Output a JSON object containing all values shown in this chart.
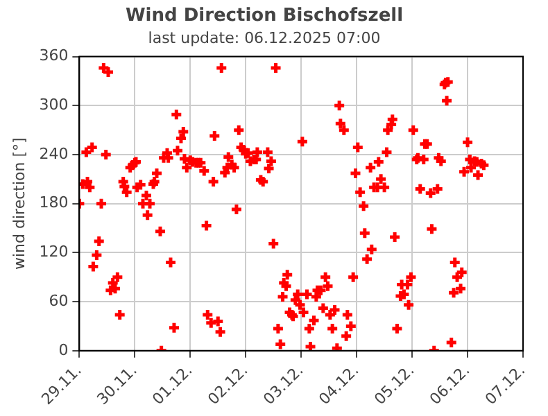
{
  "chart_data": {
    "type": "scatter",
    "title": "Wind Direction Bischofszell",
    "subtitle": "last update: 06.12.2025 07:00",
    "ylabel": "wind direction [°]",
    "xlim": [
      "2025-11-29",
      "2025-12-07"
    ],
    "xticks": [
      {
        "value": "2025-11-29",
        "label": "29.11."
      },
      {
        "value": "2025-11-30",
        "label": "30.11."
      },
      {
        "value": "2025-12-01",
        "label": "01.12."
      },
      {
        "value": "2025-12-02",
        "label": "02.12."
      },
      {
        "value": "2025-12-03",
        "label": "03.12."
      },
      {
        "value": "2025-12-04",
        "label": "04.12."
      },
      {
        "value": "2025-12-05",
        "label": "05.12."
      },
      {
        "value": "2025-12-06",
        "label": "06.12."
      },
      {
        "value": "2025-12-07",
        "label": "07.12."
      }
    ],
    "ylim": [
      0,
      360
    ],
    "yticks": [
      0,
      60,
      120,
      180,
      240,
      300,
      360
    ],
    "grid": true,
    "legend": false,
    "marker": "cross",
    "series": [
      {
        "color": "#ff0000",
        "x": [
          "2025-11-29T00:00",
          "2025-11-29T01:30",
          "2025-11-29T03:00",
          "2025-11-29T03:30",
          "2025-11-29T04:30",
          "2025-11-29T05:30",
          "2025-11-29T06:00",
          "2025-11-29T07:30",
          "2025-11-29T08:30",
          "2025-11-29T09:30",
          "2025-11-29T10:30",
          "2025-11-29T11:30",
          "2025-11-29T12:30",
          "2025-11-29T13:30",
          "2025-11-29T14:30",
          "2025-11-29T15:30",
          "2025-11-29T16:30",
          "2025-11-29T17:30",
          "2025-11-29T19:00",
          "2025-11-29T19:30",
          "2025-11-29T20:30",
          "2025-11-29T22:00",
          "2025-11-29T23:00",
          "2025-11-30T00:00",
          "2025-11-30T00:30",
          "2025-11-30T01:00",
          "2025-11-30T02:30",
          "2025-11-30T03:30",
          "2025-11-30T05:00",
          "2025-11-30T05:30",
          "2025-11-30T06:30",
          "2025-11-30T08:00",
          "2025-11-30T08:30",
          "2025-11-30T09:30",
          "2025-11-30T11:00",
          "2025-11-30T11:30",
          "2025-11-30T12:30",
          "2025-11-30T14:00",
          "2025-11-30T14:30",
          "2025-11-30T15:30",
          "2025-11-30T17:00",
          "2025-11-30T18:00",
          "2025-11-30T18:30",
          "2025-11-30T20:00",
          "2025-11-30T21:00",
          "2025-11-30T21:30",
          "2025-11-30T22:30",
          "2025-12-01T00:00",
          "2025-12-01T01:00",
          "2025-12-01T02:30",
          "2025-12-01T03:30",
          "2025-12-01T04:30",
          "2025-12-01T06:00",
          "2025-12-01T07:00",
          "2025-12-01T07:30",
          "2025-12-01T09:00",
          "2025-12-01T10:00",
          "2025-12-01T10:30",
          "2025-12-01T12:00",
          "2025-12-01T13:00",
          "2025-12-01T13:30",
          "2025-12-01T15:00",
          "2025-12-01T16:00",
          "2025-12-01T16:30",
          "2025-12-01T18:00",
          "2025-12-01T19:00",
          "2025-12-01T20:00",
          "2025-12-01T21:00",
          "2025-12-01T22:00",
          "2025-12-01T23:00",
          "2025-12-02T00:00",
          "2025-12-02T01:00",
          "2025-12-02T02:00",
          "2025-12-02T03:30",
          "2025-12-02T04:30",
          "2025-12-02T05:00",
          "2025-12-02T06:30",
          "2025-12-02T07:30",
          "2025-12-02T09:30",
          "2025-12-02T10:00",
          "2025-12-02T11:00",
          "2025-12-02T12:00",
          "2025-12-02T13:00",
          "2025-12-02T14:00",
          "2025-12-02T15:00",
          "2025-12-02T16:00",
          "2025-12-02T16:30",
          "2025-12-02T17:30",
          "2025-12-02T18:00",
          "2025-12-02T19:00",
          "2025-12-02T20:00",
          "2025-12-02T20:30",
          "2025-12-02T21:30",
          "2025-12-02T22:30",
          "2025-12-02T23:30",
          "2025-12-03T00:30",
          "2025-12-03T01:00",
          "2025-12-03T02:30",
          "2025-12-03T03:30",
          "2025-12-03T04:00",
          "2025-12-03T05:30",
          "2025-12-03T06:30",
          "2025-12-03T07:00",
          "2025-12-03T08:30",
          "2025-12-03T09:30",
          "2025-12-03T10:30",
          "2025-12-03T11:30",
          "2025-12-03T12:30",
          "2025-12-03T13:30",
          "2025-12-03T14:30",
          "2025-12-03T15:30",
          "2025-12-03T16:30",
          "2025-12-03T17:00",
          "2025-12-03T18:30",
          "2025-12-03T19:30",
          "2025-12-03T20:00",
          "2025-12-03T21:30",
          "2025-12-03T22:30",
          "2025-12-03T23:30",
          "2025-12-04T00:30",
          "2025-12-04T01:30",
          "2025-12-04T03:00",
          "2025-12-04T03:30",
          "2025-12-04T04:30",
          "2025-12-04T06:00",
          "2025-12-04T06:30",
          "2025-12-04T07:30",
          "2025-12-04T09:00",
          "2025-12-04T09:30",
          "2025-12-04T10:30",
          "2025-12-04T12:00",
          "2025-12-04T13:00",
          "2025-12-04T13:30",
          "2025-12-04T15:00",
          "2025-12-04T15:30",
          "2025-12-04T16:30",
          "2025-12-04T17:30",
          "2025-12-04T19:00",
          "2025-12-04T19:30",
          "2025-12-04T20:30",
          "2025-12-04T22:00",
          "2025-12-04T22:30",
          "2025-12-04T23:30",
          "2025-12-05T00:30",
          "2025-12-05T02:00",
          "2025-12-05T02:30",
          "2025-12-05T03:30",
          "2025-12-05T05:00",
          "2025-12-05T05:30",
          "2025-12-05T06:30",
          "2025-12-05T08:00",
          "2025-12-05T08:30",
          "2025-12-05T09:30",
          "2025-12-05T11:00",
          "2025-12-05T11:30",
          "2025-12-05T12:30",
          "2025-12-05T14:00",
          "2025-12-05T14:30",
          "2025-12-05T15:00",
          "2025-12-05T15:30",
          "2025-12-05T17:00",
          "2025-12-05T18:00",
          "2025-12-05T18:30",
          "2025-12-05T19:30",
          "2025-12-05T21:00",
          "2025-12-05T21:30",
          "2025-12-05T22:30",
          "2025-12-06T00:00",
          "2025-12-06T01:00",
          "2025-12-06T01:30",
          "2025-12-06T03:00",
          "2025-12-06T04:00",
          "2025-12-06T04:30",
          "2025-12-06T06:00",
          "2025-12-06T07:00"
        ],
        "values": [
          180,
          204,
          243,
          207,
          200,
          249,
          103,
          117,
          134,
          180,
          346,
          240,
          341,
          74,
          83,
          76,
          90,
          44,
          207,
          201,
          194,
          224,
          227,
          230,
          231,
          200,
          203,
          180,
          190,
          166,
          180,
          204,
          207,
          217,
          146,
          0,
          236,
          242,
          236,
          108,
          28,
          289,
          245,
          260,
          268,
          235,
          224,
          233,
          231,
          230,
          230,
          230,
          220,
          153,
          44,
          34,
          207,
          263,
          36,
          23,
          346,
          218,
          224,
          237,
          228,
          224,
          173,
          270,
          249,
          246,
          241,
          242,
          232,
          234,
          234,
          243,
          209,
          207,
          243,
          223,
          232,
          131,
          346,
          27,
          8,
          66,
          83,
          79,
          93,
          47,
          44,
          42,
          62,
          69,
          56,
          256,
          47,
          69,
          27,
          5,
          37,
          66,
          74,
          74,
          52,
          90,
          79,
          44,
          27,
          50,
          3,
          300,
          278,
          270,
          18,
          44,
          30,
          90,
          217,
          249,
          194,
          177,
          144,
          112,
          224,
          124,
          200,
          200,
          231,
          210,
          200,
          243,
          270,
          277,
          283,
          139,
          27,
          67,
          81,
          69,
          81,
          56,
          90,
          270,
          234,
          236,
          198,
          234,
          253,
          253,
          193,
          149,
          0,
          198,
          236,
          232,
          326,
          328,
          306,
          329,
          10,
          71,
          108,
          90,
          76,
          96,
          219,
          255,
          234,
          224,
          232,
          231,
          215,
          229,
          227
        ]
      }
    ]
  }
}
